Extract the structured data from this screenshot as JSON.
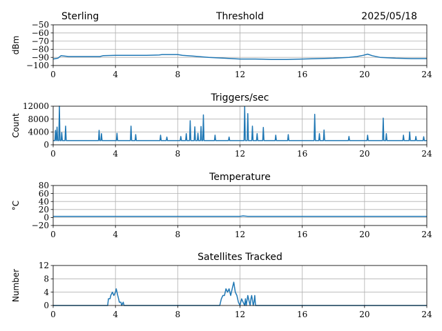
{
  "header": {
    "station": "Sterling",
    "date": "2025/05/18"
  },
  "chart_data": [
    {
      "type": "line",
      "title": "Threshold",
      "ylabel": "dBm",
      "xlabel": "",
      "xlim": [
        0,
        24
      ],
      "ylim": [
        -100,
        -50
      ],
      "xticks": [
        0,
        4,
        8,
        12,
        16,
        20,
        24
      ],
      "yticks": [
        -100,
        -90,
        -80,
        -70,
        -60,
        -50
      ],
      "ytick_labels": [
        "−100",
        "−90",
        "−80",
        "−70",
        "−60",
        "−50"
      ],
      "grid": true,
      "color": "#1f77b4",
      "series": [
        {
          "x": [
            0,
            0.3,
            0.5,
            1,
            2,
            3,
            3.2,
            4,
            5,
            6,
            6.8,
            7,
            8,
            8.3,
            9,
            10,
            11,
            12,
            13,
            14,
            15,
            16,
            17,
            18,
            19,
            19.5,
            19.9,
            20.2,
            20.5,
            21,
            22,
            23,
            24
          ],
          "y": [
            -92,
            -91,
            -88,
            -89,
            -89,
            -89,
            -88,
            -87.5,
            -87.5,
            -87.5,
            -87,
            -86.5,
            -86.5,
            -87.5,
            -88.5,
            -90,
            -91,
            -92,
            -92,
            -92.5,
            -92.5,
            -92,
            -91.5,
            -91,
            -90,
            -89,
            -87.5,
            -86,
            -88,
            -90,
            -91,
            -91.5,
            -91.5
          ]
        }
      ]
    },
    {
      "type": "line",
      "title": "Triggers/sec",
      "ylabel": "Count",
      "xlabel": "",
      "xlim": [
        0,
        24
      ],
      "ylim": [
        0,
        12000
      ],
      "xticks": [
        0,
        4,
        8,
        12,
        16,
        20,
        24
      ],
      "yticks": [
        0,
        4000,
        8000,
        12000
      ],
      "ytick_labels": [
        "0",
        "4000",
        "8000",
        "12000"
      ],
      "grid": true,
      "color": "#1f77b4",
      "series": [
        {
          "baseline": 1300,
          "spikes": [
            [
              0.15,
              4500
            ],
            [
              0.25,
              5500
            ],
            [
              0.4,
              12000
            ],
            [
              0.55,
              3800
            ],
            [
              0.8,
              5800
            ],
            [
              2.95,
              4500
            ],
            [
              3.1,
              3500
            ],
            [
              4.1,
              3600
            ],
            [
              5.0,
              5800
            ],
            [
              5.3,
              3200
            ],
            [
              6.9,
              3000
            ],
            [
              7.3,
              2400
            ],
            [
              8.2,
              2600
            ],
            [
              8.55,
              3500
            ],
            [
              8.8,
              7500
            ],
            [
              9.1,
              5600
            ],
            [
              9.3,
              3600
            ],
            [
              9.5,
              5700
            ],
            [
              9.65,
              9300
            ],
            [
              10.4,
              3000
            ],
            [
              11.3,
              2400
            ],
            [
              12.3,
              11800
            ],
            [
              12.5,
              9700
            ],
            [
              12.8,
              5800
            ],
            [
              13.1,
              3500
            ],
            [
              13.5,
              5400
            ],
            [
              14.3,
              3000
            ],
            [
              15.1,
              3200
            ],
            [
              16.8,
              9500
            ],
            [
              17.1,
              3500
            ],
            [
              17.4,
              4600
            ],
            [
              19.0,
              2600
            ],
            [
              20.2,
              3000
            ],
            [
              21.2,
              8300
            ],
            [
              21.4,
              3500
            ],
            [
              22.5,
              3000
            ],
            [
              22.9,
              4000
            ],
            [
              23.3,
              2600
            ],
            [
              23.8,
              2500
            ]
          ]
        }
      ]
    },
    {
      "type": "line",
      "title": "Temperature",
      "ylabel": "°C",
      "xlabel": "",
      "xlim": [
        0,
        24
      ],
      "ylim": [
        -20,
        80
      ],
      "xticks": [
        0,
        4,
        8,
        12,
        16,
        20,
        24
      ],
      "yticks": [
        -20,
        0,
        20,
        40,
        60,
        80
      ],
      "ytick_labels": [
        "−20",
        "0",
        "20",
        "40",
        "60",
        "80"
      ],
      "grid": true,
      "color": "#1f77b4",
      "series": [
        {
          "x": [
            0,
            12.0,
            12.2,
            12.5,
            24
          ],
          "y": [
            3,
            3,
            4,
            3,
            3
          ]
        }
      ]
    },
    {
      "type": "line",
      "title": "Satellites Tracked",
      "ylabel": "Number",
      "xlabel": "",
      "xlim": [
        0,
        24
      ],
      "ylim": [
        0,
        12
      ],
      "xticks": [
        0,
        4,
        8,
        12,
        16,
        20,
        24
      ],
      "yticks": [
        0,
        4,
        8,
        12
      ],
      "ytick_labels": [
        "0",
        "4",
        "8",
        "12"
      ],
      "grid": true,
      "color": "#1f77b4",
      "series": [
        {
          "x": [
            0,
            3.5,
            3.55,
            3.65,
            3.7,
            3.8,
            3.9,
            4.0,
            4.05,
            4.1,
            4.15,
            4.2,
            4.25,
            4.35,
            4.4,
            4.5,
            4.55,
            10.7,
            10.8,
            10.9,
            11.0,
            11.1,
            11.2,
            11.3,
            11.4,
            11.5,
            11.6,
            11.7,
            11.8,
            11.9,
            12.0,
            12.1,
            12.2,
            12.3,
            12.35,
            12.4,
            12.5,
            12.6,
            12.65,
            12.7,
            12.75,
            12.85,
            12.9,
            12.95,
            13.0,
            24
          ],
          "y": [
            0,
            0,
            2,
            2,
            3,
            4,
            3,
            4,
            5,
            4,
            3,
            2,
            1,
            1,
            0,
            1,
            0,
            0,
            2,
            3,
            3,
            5,
            4,
            5,
            3,
            5,
            7,
            4,
            3,
            1,
            0,
            2,
            1,
            0,
            2,
            0,
            3,
            1,
            0,
            2,
            3,
            0,
            1,
            3,
            0,
            0
          ]
        }
      ]
    }
  ]
}
